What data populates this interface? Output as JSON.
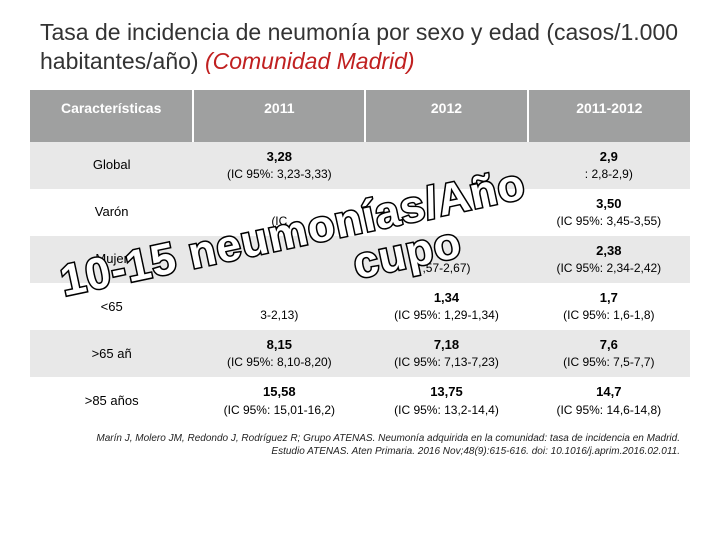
{
  "title_main": "Tasa de incidencia de neumonía por sexo y edad (casos/1.000 habitantes/año) ",
  "title_sub": "(Comunidad Madrid)",
  "columns": [
    "Características",
    "2011",
    "2012",
    "2011-2012"
  ],
  "rows": [
    {
      "label": "Global",
      "c1_v": "3,28",
      "c1_ci": "(IC 95%: 3,23-3,33)",
      "c2_v": "",
      "c2_ci": "",
      "c3_v": "2,9",
      "c3_ci": ": 2,8-2,9)",
      "bg": "zebra-light"
    },
    {
      "label": "Varón",
      "c1_v": "",
      "c1_ci": "(IC",
      "c2_v": "",
      "c2_ci": "",
      "c3_v": "3,50",
      "c3_ci": "(IC 95%: 3,45-3,55)",
      "bg": ""
    },
    {
      "label": "Mujer",
      "c1_v": "",
      "c1_ci": "",
      "c2_v": "",
      "c2_ci": ",57-2,67)",
      "c3_v": "2,38",
      "c3_ci": "(IC 95%: 2,34-2,42)",
      "bg": "zebra-light"
    },
    {
      "label": "<65",
      "c1_v": "",
      "c1_ci": "3-2,13)",
      "c2_v": "1,34",
      "c2_ci": "(IC 95%: 1,29-1,34)",
      "c3_v": "1,7",
      "c3_ci": "(IC 95%: 1,6-1,8)",
      "bg": ""
    },
    {
      "label": ">65 añ",
      "c1_v": "8,15",
      "c1_ci": "(IC 95%: 8,10-8,20)",
      "c2_v": "7,18",
      "c2_ci": "(IC 95%: 7,13-7,23)",
      "c3_v": "7,6",
      "c3_ci": "(IC 95%: 7,5-7,7)",
      "bg": "zebra-light"
    },
    {
      "label": ">85 años",
      "c1_v": "15,58",
      "c1_ci": "(IC 95%: 15,01-16,2)",
      "c2_v": "13,75",
      "c2_ci": "(IC 95%: 13,2-14,4)",
      "c3_v": "14,7",
      "c3_ci": "(IC 95%: 14,6-14,8)",
      "bg": ""
    }
  ],
  "overlay_line1": "10-15 neumonías/Año",
  "overlay_line2": "cupo",
  "citation_l1": "Marín J, Molero JM, Redondo J, Rodríguez R; Grupo ATENAS. Neumonía adquirida en la comunidad: tasa de incidencia en Madrid.",
  "citation_l2": "Estudio ATENAS. Aten Primaria. 2016 Nov;48(9):615-616. doi: 10.1016/j.aprim.2016.02.011.",
  "colors": {
    "header_bg": "#9fa0a0",
    "zebra_bg": "#e8e8e8",
    "title_sub": "#c02020",
    "overlay_stroke": "#000",
    "overlay_fill": "#fff"
  }
}
